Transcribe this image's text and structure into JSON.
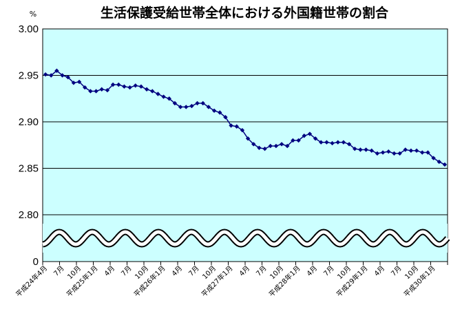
{
  "chart_data": {
    "type": "line",
    "title": "生活保護受給世帯全体における外国籍世帯の割合",
    "y_unit": "%",
    "xlabel": "",
    "ylabel": "",
    "ylim": [
      2.8,
      3.0
    ],
    "axis_break": true,
    "y_ticks": [
      "3.00",
      "2.95",
      "2.90",
      "2.85",
      "2.80",
      "0"
    ],
    "grid": true,
    "legend": "none",
    "colors": {
      "plot_bg": "#CCFFFF",
      "line": "#000080",
      "marker": "#000080"
    },
    "x_ticks": [
      {
        "i": 0,
        "label": "平成24年4月"
      },
      {
        "i": 3,
        "label": "7月"
      },
      {
        "i": 6,
        "label": "10月"
      },
      {
        "i": 9,
        "label": "平成25年1月"
      },
      {
        "i": 12,
        "label": "4月"
      },
      {
        "i": 15,
        "label": "7月"
      },
      {
        "i": 18,
        "label": "10月"
      },
      {
        "i": 21,
        "label": "平成26年1月"
      },
      {
        "i": 24,
        "label": "4月"
      },
      {
        "i": 27,
        "label": "7月"
      },
      {
        "i": 30,
        "label": "10月"
      },
      {
        "i": 33,
        "label": "平成27年1月"
      },
      {
        "i": 36,
        "label": "4月"
      },
      {
        "i": 39,
        "label": "7月"
      },
      {
        "i": 42,
        "label": "10月"
      },
      {
        "i": 45,
        "label": "平成28年1月"
      },
      {
        "i": 48,
        "label": "4月"
      },
      {
        "i": 51,
        "label": "7月"
      },
      {
        "i": 54,
        "label": "10月"
      },
      {
        "i": 57,
        "label": "平成29年1月"
      },
      {
        "i": 60,
        "label": "4月"
      },
      {
        "i": 63,
        "label": "7月"
      },
      {
        "i": 66,
        "label": "10月"
      },
      {
        "i": 69,
        "label": "平成30年1月"
      }
    ],
    "values": [
      2.951,
      2.95,
      2.955,
      2.95,
      2.948,
      2.942,
      2.943,
      2.937,
      2.933,
      2.933,
      2.935,
      2.934,
      2.94,
      2.94,
      2.938,
      2.937,
      2.939,
      2.938,
      2.935,
      2.933,
      2.93,
      2.927,
      2.925,
      2.92,
      2.916,
      2.916,
      2.917,
      2.92,
      2.92,
      2.916,
      2.912,
      2.91,
      2.905,
      2.896,
      2.895,
      2.891,
      2.882,
      2.876,
      2.872,
      2.871,
      2.874,
      2.874,
      2.876,
      2.874,
      2.88,
      2.88,
      2.885,
      2.887,
      2.882,
      2.878,
      2.878,
      2.877,
      2.878,
      2.878,
      2.876,
      2.871,
      2.87,
      2.87,
      2.869,
      2.866,
      2.867,
      2.868,
      2.866,
      2.866,
      2.87,
      2.869,
      2.869,
      2.867,
      2.867,
      2.861,
      2.857,
      2.854
    ]
  }
}
